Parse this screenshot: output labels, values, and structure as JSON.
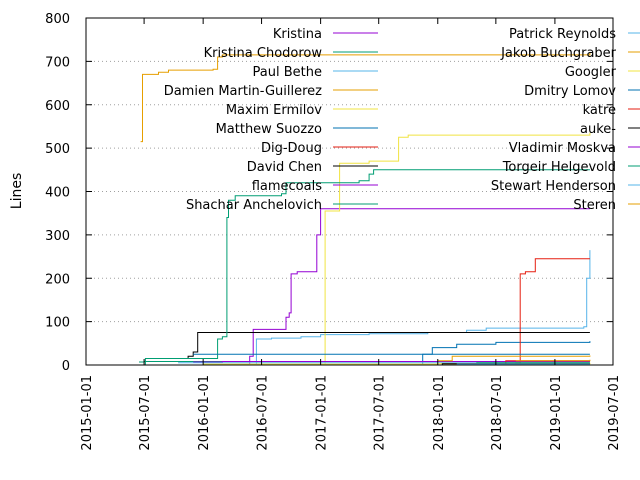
{
  "chart_data": {
    "type": "line",
    "ylabel": "Lines",
    "xlim": [
      "2015-01-01",
      "2019-07-01"
    ],
    "ylim": [
      0,
      800
    ],
    "grid": "y-dotted",
    "legend_placement": "top (two columns)",
    "x_ticks": [
      "2015-01-01",
      "2015-07-01",
      "2016-01-01",
      "2016-07-01",
      "2017-01-01",
      "2017-07-01",
      "2018-01-01",
      "2018-07-01",
      "2019-01-01",
      "2019-07-01"
    ],
    "y_ticks": [
      0,
      100,
      200,
      300,
      400,
      500,
      600,
      700,
      800
    ],
    "series": [
      {
        "name": "Kristina",
        "color": "#9400d3",
        "points": [
          [
            "2016-05-10",
            0
          ],
          [
            "2016-05-25",
            20
          ],
          [
            "2016-06-05",
            82
          ],
          [
            "2016-08-01",
            82
          ],
          [
            "2016-09-15",
            110
          ],
          [
            "2016-09-25",
            120
          ],
          [
            "2016-10-01",
            210
          ],
          [
            "2016-10-20",
            215
          ],
          [
            "2016-12-01",
            215
          ],
          [
            "2016-12-20",
            300
          ],
          [
            "2017-01-01",
            360
          ],
          [
            "2019-04-20",
            360
          ]
        ]
      },
      {
        "name": "Kristina Chodorow",
        "color": "#009e73",
        "points": [
          [
            "2015-06-15",
            7
          ],
          [
            "2015-07-01",
            8
          ],
          [
            "2019-04-20",
            8
          ]
        ]
      },
      {
        "name": "Paul Bethe",
        "color": "#56b4e9",
        "points": [
          [
            "2016-06-01",
            0
          ],
          [
            "2016-06-15",
            60
          ],
          [
            "2016-08-01",
            62
          ],
          [
            "2016-11-01",
            65
          ],
          [
            "2017-01-01",
            70
          ],
          [
            "2017-06-01",
            72
          ],
          [
            "2017-12-01",
            75
          ],
          [
            "2018-04-01",
            80
          ],
          [
            "2018-06-01",
            85
          ],
          [
            "2019-04-01",
            88
          ],
          [
            "2019-04-10",
            200
          ],
          [
            "2019-04-20",
            265
          ]
        ]
      },
      {
        "name": "Damien Martin-Guillerez",
        "color": "#e69f00",
        "points": [
          [
            "2015-06-20",
            515
          ],
          [
            "2015-06-25",
            515
          ],
          [
            "2015-06-26",
            670
          ],
          [
            "2015-08-01",
            670
          ],
          [
            "2015-08-15",
            675
          ],
          [
            "2015-09-15",
            680
          ],
          [
            "2016-02-01",
            682
          ],
          [
            "2016-02-15",
            710
          ],
          [
            "2016-03-01",
            715
          ],
          [
            "2019-04-20",
            720
          ]
        ]
      },
      {
        "name": "Maxim Ermilov",
        "color": "#f0e442",
        "points": [
          [
            "2016-12-20",
            0
          ],
          [
            "2017-01-15",
            355
          ],
          [
            "2017-02-15",
            355
          ],
          [
            "2017-03-01",
            465
          ],
          [
            "2017-06-01",
            470
          ],
          [
            "2017-07-01",
            470
          ],
          [
            "2017-08-15",
            470
          ],
          [
            "2017-09-01",
            525
          ],
          [
            "2017-10-01",
            530
          ],
          [
            "2019-04-20",
            535
          ]
        ]
      },
      {
        "name": "Matthew Suozzo",
        "color": "#0072b2",
        "points": [
          [
            "2017-10-01",
            0
          ],
          [
            "2017-11-15",
            25
          ],
          [
            "2017-12-15",
            40
          ],
          [
            "2018-03-01",
            48
          ],
          [
            "2018-07-01",
            52
          ],
          [
            "2019-04-20",
            55
          ]
        ]
      },
      {
        "name": "Dig-Doug",
        "color": "#e51e10",
        "points": [
          [
            "2018-08-01",
            0
          ],
          [
            "2018-09-01",
            5
          ],
          [
            "2018-09-15",
            210
          ],
          [
            "2018-10-01",
            215
          ],
          [
            "2018-11-01",
            245
          ],
          [
            "2019-04-20",
            245
          ]
        ]
      },
      {
        "name": "David Chen",
        "color": "#000000",
        "points": [
          [
            "2015-10-15",
            15
          ],
          [
            "2015-11-15",
            20
          ],
          [
            "2015-12-01",
            30
          ],
          [
            "2015-12-15",
            75
          ],
          [
            "2019-04-20",
            75
          ]
        ]
      },
      {
        "name": "flamecoals",
        "color": "#9400d3",
        "points": [
          [
            "2015-12-01",
            7
          ],
          [
            "2016-03-01",
            8
          ],
          [
            "2019-04-20",
            8
          ]
        ]
      },
      {
        "name": "Shachar Anchelovich",
        "color": "#009e73",
        "points": [
          [
            "2015-07-01",
            0
          ],
          [
            "2015-07-05",
            15
          ],
          [
            "2016-02-01",
            15
          ],
          [
            "2016-02-15",
            60
          ],
          [
            "2016-03-01",
            65
          ],
          [
            "2016-03-15",
            340
          ],
          [
            "2016-03-20",
            380
          ],
          [
            "2016-04-10",
            390
          ],
          [
            "2016-09-01",
            395
          ],
          [
            "2016-09-15",
            420
          ],
          [
            "2017-02-01",
            420
          ],
          [
            "2017-05-01",
            425
          ],
          [
            "2017-06-01",
            440
          ],
          [
            "2017-06-15",
            450
          ],
          [
            "2019-04-20",
            450
          ]
        ]
      },
      {
        "name": "Patrick Reynolds",
        "color": "#56b4e9",
        "points": [
          [
            "2015-10-15",
            5
          ],
          [
            "2019-04-20",
            5
          ]
        ]
      },
      {
        "name": "Jakob Buchgraber",
        "color": "#e69f00",
        "points": [
          [
            "2018-01-01",
            10
          ],
          [
            "2018-02-15",
            20
          ],
          [
            "2019-04-20",
            22
          ]
        ]
      },
      {
        "name": "Googler",
        "color": "#f0e442",
        "points": [
          [
            "2016-01-01",
            2
          ],
          [
            "2018-01-01",
            3
          ],
          [
            "2019-04-20",
            5
          ]
        ]
      },
      {
        "name": "Dmitry Lomov",
        "color": "#0072b2",
        "points": [
          [
            "2015-12-01",
            25
          ],
          [
            "2016-02-01",
            25
          ],
          [
            "2019-04-20",
            25
          ]
        ]
      },
      {
        "name": "katre",
        "color": "#e51e10",
        "points": [
          [
            "2017-12-15",
            0
          ],
          [
            "2018-08-01",
            10
          ],
          [
            "2019-04-20",
            10
          ]
        ]
      },
      {
        "name": "auke-",
        "color": "#000000",
        "points": [
          [
            "2017-12-01",
            0
          ],
          [
            "2018-01-15",
            3
          ],
          [
            "2019-04-20",
            3
          ]
        ]
      },
      {
        "name": "Vladimir Moskva",
        "color": "#9400d3",
        "points": [
          [
            "2018-05-01",
            0
          ],
          [
            "2019-04-20",
            1
          ]
        ]
      },
      {
        "name": "Torgeir Helgevold",
        "color": "#009e73",
        "points": [
          [
            "2018-05-01",
            5
          ],
          [
            "2019-04-20",
            5
          ]
        ]
      },
      {
        "name": "Stewart Henderson",
        "color": "#56b4e9",
        "points": [
          [
            "2018-03-01",
            2
          ],
          [
            "2019-04-20",
            2
          ]
        ]
      },
      {
        "name": "Steren",
        "color": "#e69f00",
        "points": [
          [
            "2018-09-01",
            10
          ],
          [
            "2019-04-20",
            12
          ]
        ]
      }
    ]
  }
}
